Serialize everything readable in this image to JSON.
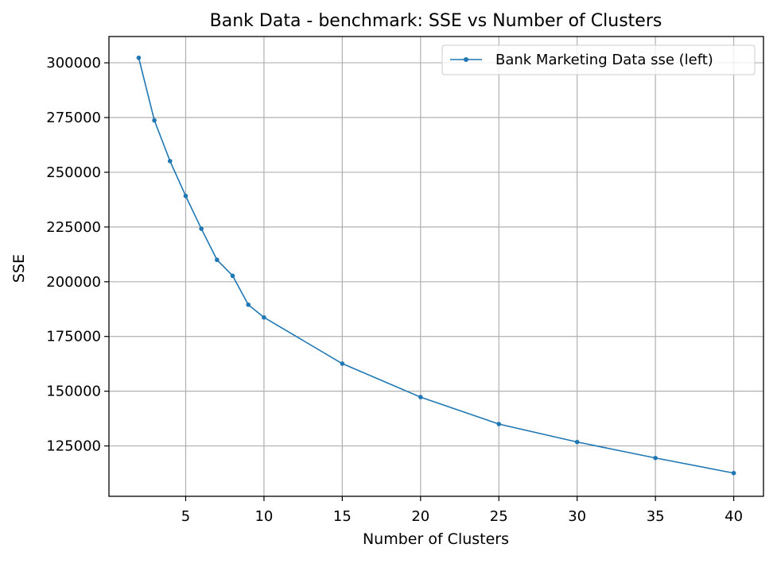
{
  "chart_data": {
    "type": "line",
    "title": "Bank Data - benchmark: SSE vs Number of Clusters",
    "xlabel": "Number of Clusters",
    "ylabel": "SSE",
    "xlim": [
      0.1,
      41.9
    ],
    "ylim": [
      102000,
      312000
    ],
    "xticks": [
      5,
      10,
      15,
      20,
      25,
      30,
      35,
      40
    ],
    "yticks": [
      125000,
      150000,
      175000,
      200000,
      225000,
      250000,
      275000,
      300000
    ],
    "grid": true,
    "legend_position": "top-right",
    "series": [
      {
        "name": "Bank Marketing Data sse (left)",
        "color": "#1f77b4",
        "marker": "point",
        "x": [
          2,
          3,
          4,
          5,
          6,
          7,
          8,
          9,
          10,
          15,
          20,
          25,
          30,
          35,
          40
        ],
        "y": [
          302300,
          273700,
          255100,
          239200,
          224200,
          210000,
          202700,
          189500,
          183700,
          162600,
          147300,
          135000,
          126800,
          119500,
          112600
        ]
      }
    ]
  }
}
